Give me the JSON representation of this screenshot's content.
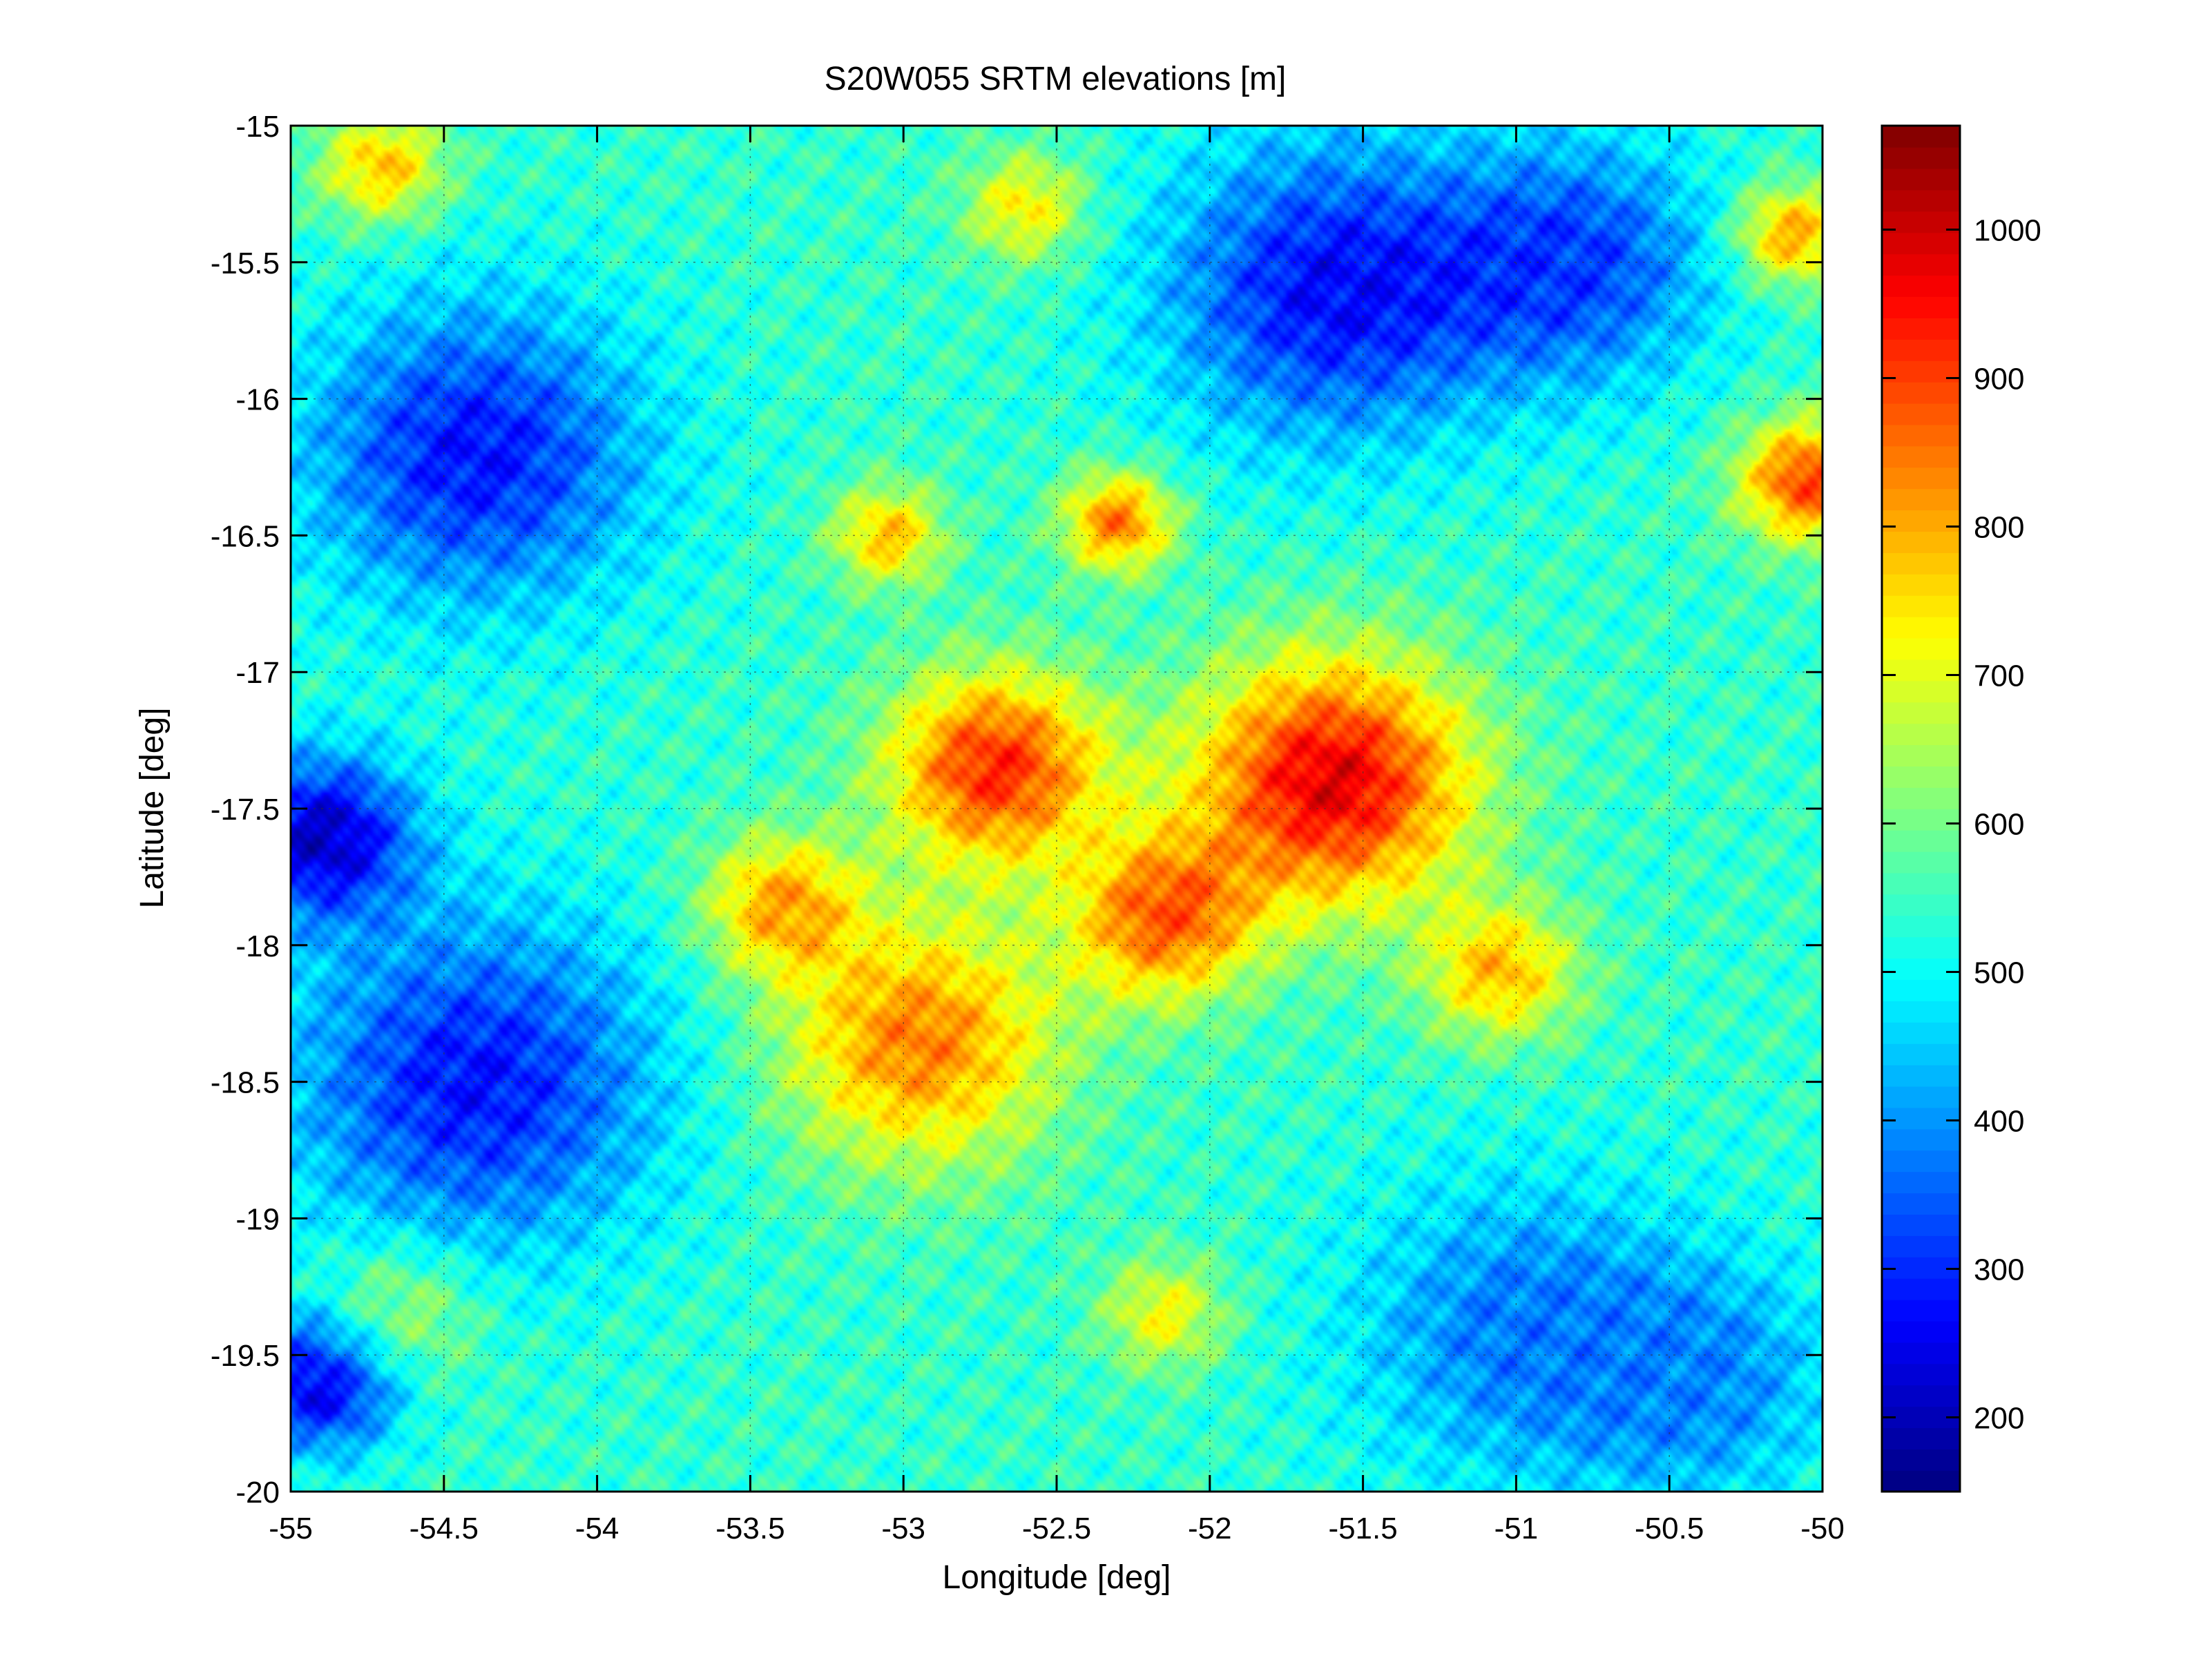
{
  "chart_data": {
    "type": "heatmap",
    "title": "S20W055 SRTM elevations [m]",
    "xlabel": "Longitude [deg]",
    "ylabel": "Latitude [deg]",
    "xlim": [
      -55,
      -50
    ],
    "ylim": [
      -20,
      -15
    ],
    "xticks": [
      -55,
      -54.5,
      -54,
      -53.5,
      -53,
      -52.5,
      -52,
      -51.5,
      -51,
      -50.5,
      -50
    ],
    "yticks": [
      -15,
      -15.5,
      -16,
      -16.5,
      -17,
      -17.5,
      -18,
      -18.5,
      -19,
      -19.5,
      -20
    ],
    "grid": true,
    "colormap": "jet",
    "clim": [
      150,
      1070
    ],
    "colorbar_ticks": [
      200,
      300,
      400,
      500,
      600,
      700,
      800,
      900,
      1000
    ],
    "regions": [
      {
        "lon": -52.7,
        "lat": -17.35,
        "elev": 920,
        "r": 0.35
      },
      {
        "lon": -51.6,
        "lat": -17.4,
        "elev": 980,
        "r": 0.45
      },
      {
        "lon": -52.95,
        "lat": -18.35,
        "elev": 840,
        "r": 0.45
      },
      {
        "lon": -52.15,
        "lat": -17.9,
        "elev": 860,
        "r": 0.3
      },
      {
        "lon": -53.4,
        "lat": -17.85,
        "elev": 800,
        "r": 0.25
      },
      {
        "lon": -51.05,
        "lat": -18.1,
        "elev": 780,
        "r": 0.25
      },
      {
        "lon": -52.3,
        "lat": -16.45,
        "elev": 850,
        "r": 0.18
      },
      {
        "lon": -53.05,
        "lat": -16.5,
        "elev": 780,
        "r": 0.18
      },
      {
        "lon": -52.6,
        "lat": -15.3,
        "elev": 740,
        "r": 0.2
      },
      {
        "lon": -54.7,
        "lat": -15.15,
        "elev": 780,
        "r": 0.2
      },
      {
        "lon": -50.05,
        "lat": -16.3,
        "elev": 900,
        "r": 0.22
      },
      {
        "lon": -50.1,
        "lat": -15.4,
        "elev": 820,
        "r": 0.18
      },
      {
        "lon": -52.15,
        "lat": -19.35,
        "elev": 720,
        "r": 0.2
      },
      {
        "lon": -54.65,
        "lat": -19.35,
        "elev": 680,
        "r": 0.25
      },
      {
        "lon": -54.4,
        "lat": -16.2,
        "elev": 280,
        "r": 0.55
      },
      {
        "lon": -54.4,
        "lat": -18.5,
        "elev": 280,
        "r": 0.6
      },
      {
        "lon": -54.9,
        "lat": -17.6,
        "elev": 220,
        "r": 0.3
      },
      {
        "lon": -51.6,
        "lat": -15.6,
        "elev": 270,
        "r": 0.55
      },
      {
        "lon": -50.8,
        "lat": -15.5,
        "elev": 330,
        "r": 0.45
      },
      {
        "lon": -51.0,
        "lat": -19.4,
        "elev": 380,
        "r": 0.55
      },
      {
        "lon": -50.4,
        "lat": -19.6,
        "elev": 400,
        "r": 0.45
      },
      {
        "lon": -54.9,
        "lat": -19.6,
        "elev": 230,
        "r": 0.25
      }
    ]
  }
}
